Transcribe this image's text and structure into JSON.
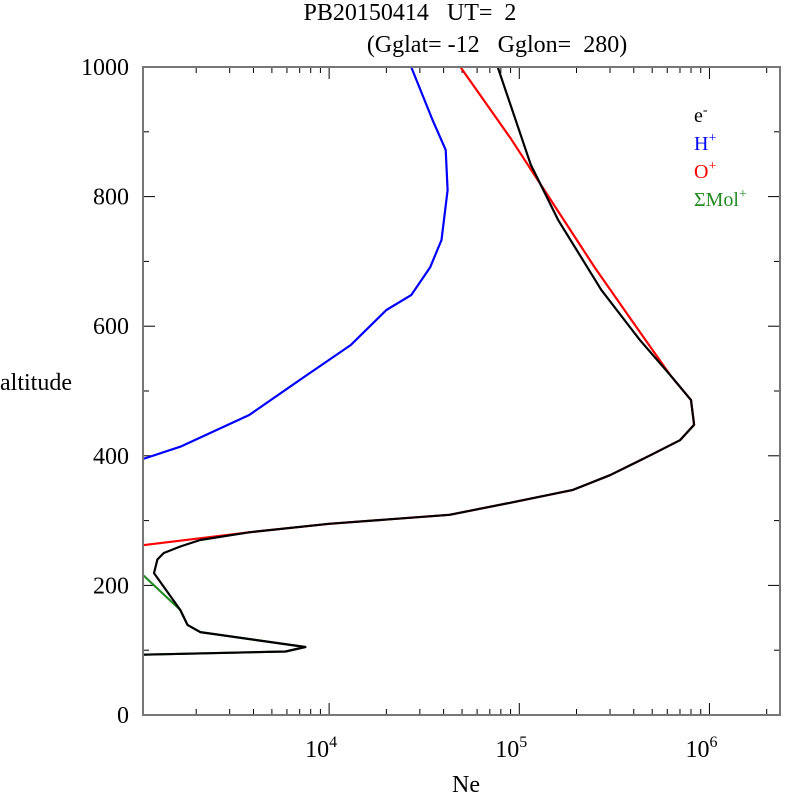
{
  "chart_data": {
    "type": "line",
    "title_line1": "PB20150414   UT=  2",
    "title_line2": "(Gglat= -12   Gglon=  280)",
    "xlabel": "Ne",
    "ylabel": "altitude",
    "xscale": "log",
    "xlim": [
      1050,
      2350000
    ],
    "ylim": [
      0,
      1000
    ],
    "yticks": [
      "0",
      "200",
      "400",
      "600",
      "800",
      "1000"
    ],
    "ytick_values": [
      0,
      200,
      400,
      600,
      800,
      1000
    ],
    "xticks": [
      {
        "base": "10",
        "exp": "4",
        "value": 10000
      },
      {
        "base": "10",
        "exp": "5",
        "value": 100000
      },
      {
        "base": "10",
        "exp": "6",
        "value": 1000000
      }
    ],
    "legend_position": "top-right",
    "series": [
      {
        "name": "e",
        "sup": "-",
        "color": "#000000",
        "points": [
          [
            1050,
            93
          ],
          [
            5900,
            98
          ],
          [
            7500,
            105
          ],
          [
            2100,
            128
          ],
          [
            1800,
            139
          ],
          [
            1650,
            162
          ],
          [
            1200,
            219
          ],
          [
            1250,
            240
          ],
          [
            1350,
            250
          ],
          [
            1650,
            260
          ],
          [
            2100,
            270
          ],
          [
            3800,
            282
          ],
          [
            10000,
            295
          ],
          [
            43000,
            309
          ],
          [
            95000,
            329
          ],
          [
            190000,
            347
          ],
          [
            300000,
            370
          ],
          [
            490000,
            401
          ],
          [
            700000,
            424
          ],
          [
            830000,
            448
          ],
          [
            800000,
            486
          ],
          [
            620000,
            525
          ],
          [
            430000,
            579
          ],
          [
            270000,
            656
          ],
          [
            160000,
            764
          ],
          [
            115000,
            849
          ],
          [
            77000,
            1000
          ]
        ]
      },
      {
        "name": "H",
        "sup": "+",
        "color": "#0000ff",
        "points": [
          [
            1050,
            395
          ],
          [
            1650,
            414
          ],
          [
            3800,
            463
          ],
          [
            7000,
            517
          ],
          [
            13000,
            571
          ],
          [
            20000,
            625
          ],
          [
            27000,
            648
          ],
          [
            34000,
            691
          ],
          [
            39000,
            733
          ],
          [
            42000,
            810
          ],
          [
            41000,
            872
          ],
          [
            35000,
            918
          ],
          [
            27000,
            1000
          ]
        ]
      },
      {
        "name": "O",
        "sup": "+",
        "color": "#ff0000",
        "points": [
          [
            1050,
            262
          ],
          [
            3800,
            282
          ],
          [
            10000,
            295
          ],
          [
            43000,
            309
          ],
          [
            95000,
            329
          ],
          [
            190000,
            347
          ],
          [
            300000,
            370
          ],
          [
            490000,
            401
          ],
          [
            700000,
            424
          ],
          [
            830000,
            448
          ],
          [
            800000,
            486
          ],
          [
            620000,
            525
          ],
          [
            410000,
            600
          ],
          [
            250000,
            690
          ],
          [
            150000,
            790
          ],
          [
            90000,
            890
          ],
          [
            49000,
            1000
          ]
        ]
      },
      {
        "name": "ΣMol",
        "sup": "+",
        "color": "#228b22",
        "points": [
          [
            1050,
            216
          ],
          [
            1650,
            162
          ],
          [
            1800,
            139
          ],
          [
            2100,
            128
          ],
          [
            7500,
            105
          ],
          [
            5900,
            98
          ],
          [
            1050,
            93
          ]
        ]
      }
    ]
  }
}
